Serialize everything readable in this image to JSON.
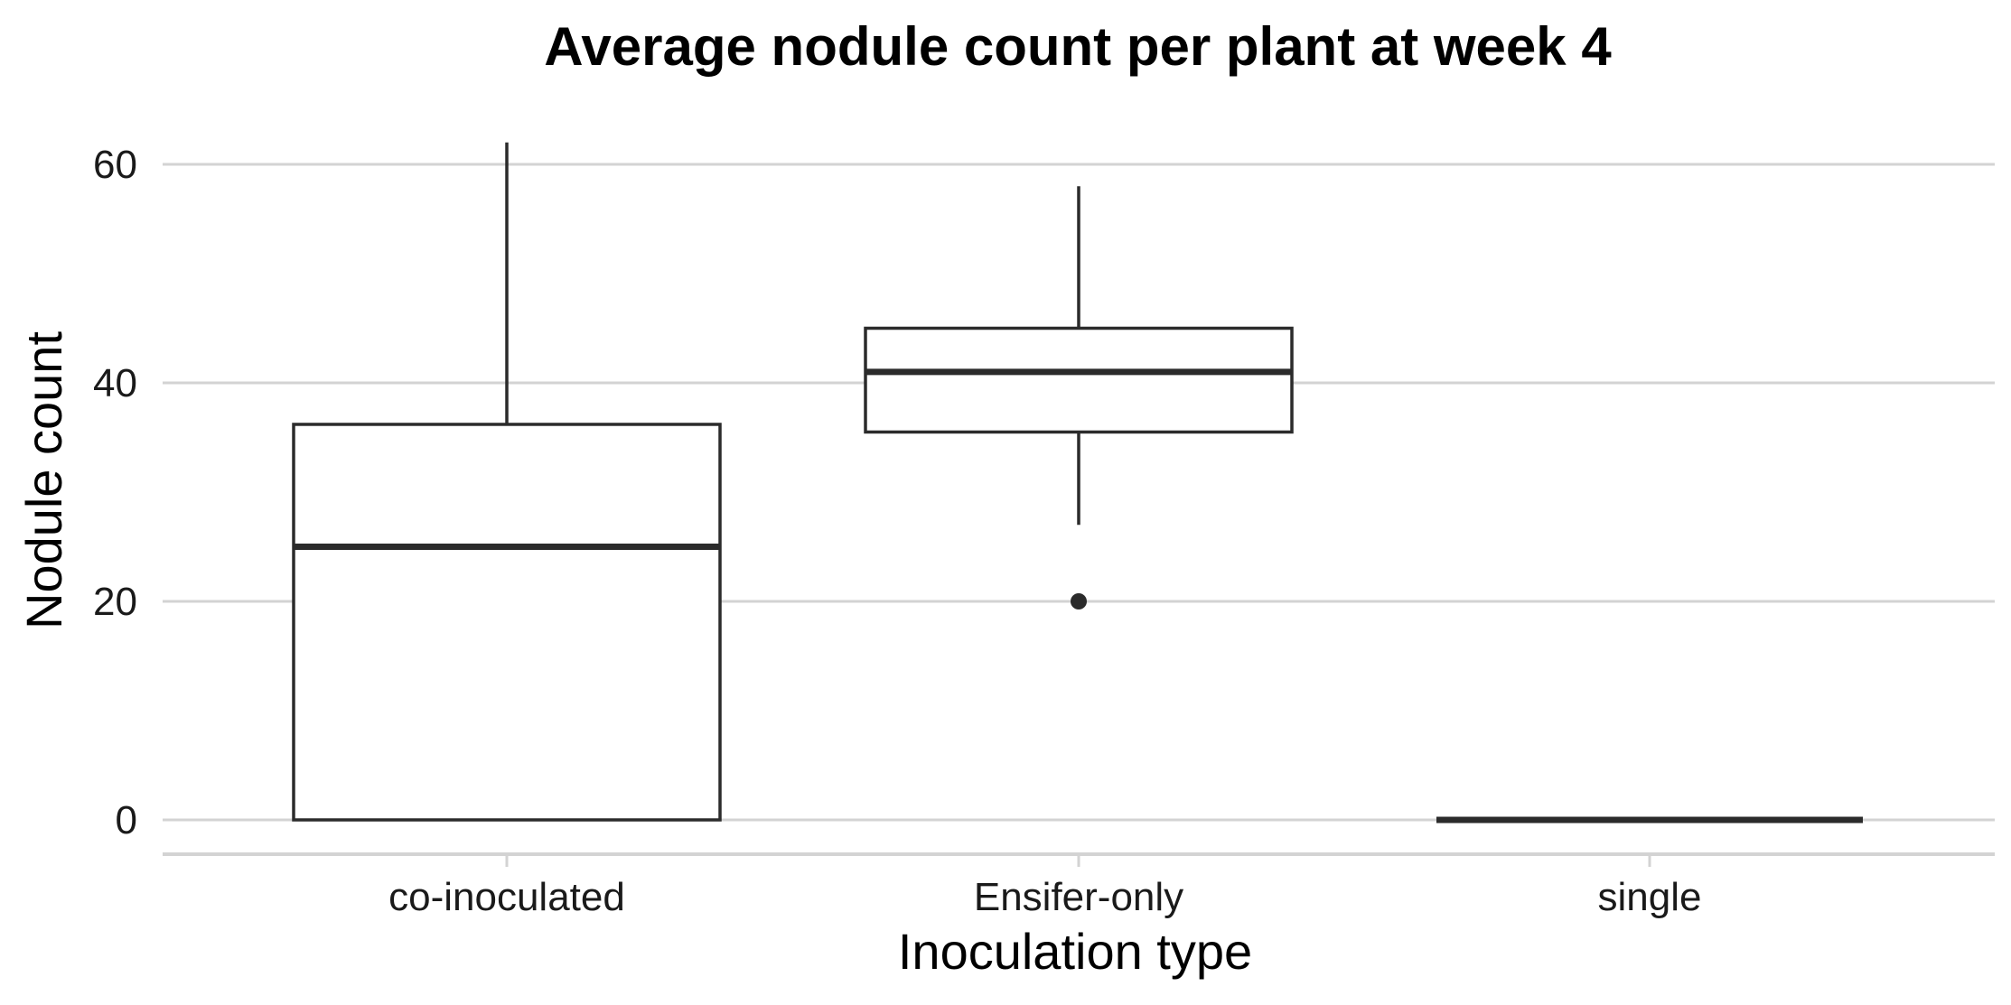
{
  "chart_data": {
    "type": "box",
    "title": "Average nodule count per plant at week 4",
    "xlabel": "Inoculation type",
    "ylabel": "Nodule count",
    "categories": [
      "co-inoculated",
      "Ensifer-only",
      "single"
    ],
    "ylim": [
      -3.5,
      64
    ],
    "yticks": [
      0,
      20,
      40,
      60
    ],
    "ytick_labels": [
      "0",
      "20",
      "40",
      "60"
    ],
    "grid": "horizontal",
    "legend": "none",
    "boxes": [
      {
        "category": "co-inoculated",
        "min": 0,
        "q1": 0,
        "median": 25,
        "q3": 36.2,
        "max": 62,
        "outliers": []
      },
      {
        "category": "Ensifer-only",
        "min": 27,
        "q1": 35.5,
        "median": 41,
        "q3": 45,
        "max": 58,
        "outliers": [
          20
        ]
      },
      {
        "category": "single",
        "min": 0,
        "q1": 0,
        "median": 0,
        "q3": 0,
        "max": 0,
        "outliers": []
      }
    ],
    "colors": {
      "box_stroke": "#2b2b2b",
      "box_fill": "#ffffff",
      "grid": "#d3d3d3",
      "axis": "#d3d3d3"
    }
  }
}
